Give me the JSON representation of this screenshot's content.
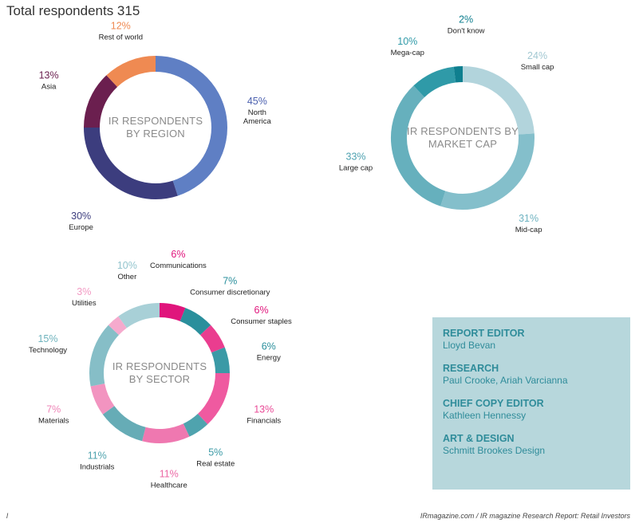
{
  "header": {
    "title": "Total respondents 315"
  },
  "chart_data": [
    {
      "type": "pie",
      "title": "IR RESPONDENTS BY REGION",
      "title_lines": [
        "IR RESPONDENTS",
        "BY REGION"
      ],
      "slices": [
        {
          "label": "North America",
          "label_lines": [
            "North",
            "America"
          ],
          "pct_text": "45%",
          "value": 45,
          "color": "#5f7fc4",
          "pct_color": "#4a5fae"
        },
        {
          "label": "Europe",
          "label_lines": [
            "Europe"
          ],
          "pct_text": "30%",
          "value": 30,
          "color": "#3c3d7e",
          "pct_color": "#3c3d7e"
        },
        {
          "label": "Asia",
          "label_lines": [
            "Asia"
          ],
          "pct_text": "13%",
          "value": 13,
          "color": "#6b1f4f",
          "pct_color": "#6b1f4f"
        },
        {
          "label": "Rest of world",
          "label_lines": [
            "Rest of world"
          ],
          "pct_text": "12%",
          "value": 12,
          "color": "#ef8a52",
          "pct_color": "#ef8a52"
        }
      ]
    },
    {
      "type": "pie",
      "title": "IR RESPONDENTS BY MARKET CAP",
      "title_lines": [
        "IR RESPONDENTS BY",
        "MARKET CAP"
      ],
      "slices": [
        {
          "label": "Small cap",
          "label_lines": [
            "Small cap"
          ],
          "pct_text": "24%",
          "value": 24,
          "color": "#b2d4dc",
          "pct_color": "#a2c8d2"
        },
        {
          "label": "Mid-cap",
          "label_lines": [
            "Mid-cap"
          ],
          "pct_text": "31%",
          "value": 31,
          "color": "#84bfcb",
          "pct_color": "#6fb3c1"
        },
        {
          "label": "Large cap",
          "label_lines": [
            "Large cap"
          ],
          "pct_text": "33%",
          "value": 33,
          "color": "#66b0bd",
          "pct_color": "#4fa2b1"
        },
        {
          "label": "Mega-cap",
          "label_lines": [
            "Mega-cap"
          ],
          "pct_text": "10%",
          "value": 10,
          "color": "#2f9aa8",
          "pct_color": "#2f9aa8"
        },
        {
          "label": "Don't know",
          "label_lines": [
            "Don't know"
          ],
          "pct_text": "2%",
          "value": 2,
          "color": "#0f7f8f",
          "pct_color": "#0f7f8f"
        }
      ]
    },
    {
      "type": "pie",
      "title": "IR RESPONDENTS BY SECTOR",
      "title_lines": [
        "IR RESPONDENTS",
        "BY SECTOR"
      ],
      "slices": [
        {
          "label": "Communications",
          "label_lines": [
            "Communications"
          ],
          "pct_text": "6%",
          "value": 6,
          "color": "#e0157c",
          "pct_color": "#e0157c"
        },
        {
          "label": "Consumer discretionary",
          "label_lines": [
            "Consumer discretionary"
          ],
          "pct_text": "7%",
          "value": 7,
          "color": "#2a8f9c",
          "pct_color": "#2a8f9c"
        },
        {
          "label": "Consumer staples",
          "label_lines": [
            "Consumer staples"
          ],
          "pct_text": "6%",
          "value": 6,
          "color": "#ea3d8f",
          "pct_color": "#e0157c"
        },
        {
          "label": "Energy",
          "label_lines": [
            "Energy"
          ],
          "pct_text": "6%",
          "value": 6,
          "color": "#3b9aa6",
          "pct_color": "#2a8f9c"
        },
        {
          "label": "Financials",
          "label_lines": [
            "Financials"
          ],
          "pct_text": "13%",
          "value": 13,
          "color": "#ef5aa0",
          "pct_color": "#e94b97"
        },
        {
          "label": "Real estate",
          "label_lines": [
            "Real estate"
          ],
          "pct_text": "5%",
          "value": 5,
          "color": "#4fa3ae",
          "pct_color": "#3b9aa6"
        },
        {
          "label": "Healthcare",
          "label_lines": [
            "Healthcare"
          ],
          "pct_text": "11%",
          "value": 11,
          "color": "#ef78b0",
          "pct_color": "#ec6aa6"
        },
        {
          "label": "Industrials",
          "label_lines": [
            "Industrials"
          ],
          "pct_text": "11%",
          "value": 11,
          "color": "#66acb6",
          "pct_color": "#4fa3ae"
        },
        {
          "label": "Materials",
          "label_lines": [
            "Materials"
          ],
          "pct_text": "7%",
          "value": 7,
          "color": "#f294c0",
          "pct_color": "#ee85b7"
        },
        {
          "label": "Technology",
          "label_lines": [
            "Technology"
          ],
          "pct_text": "15%",
          "value": 15,
          "color": "#86bec7",
          "pct_color": "#6fb3bd"
        },
        {
          "label": "Utilities",
          "label_lines": [
            "Utilities"
          ],
          "pct_text": "3%",
          "value": 3,
          "color": "#f5aacd",
          "pct_color": "#f29ac3"
        },
        {
          "label": "Other",
          "label_lines": [
            "Other"
          ],
          "pct_text": "10%",
          "value": 10,
          "color": "#a8d0d7",
          "pct_color": "#92c4cd"
        }
      ]
    }
  ],
  "credits": [
    {
      "role": "REPORT EDITOR",
      "name": "Lloyd Bevan"
    },
    {
      "role": "RESEARCH",
      "name": "Paul Crooke, Ariah Varcianna"
    },
    {
      "role": "CHIEF COPY EDITOR",
      "name": "Kathleen Hennessy"
    },
    {
      "role": "ART & DESIGN",
      "name": "Schmitt Brookes Design"
    }
  ],
  "footer": {
    "page": "l",
    "source": "IRmagazine.com / IR magazine Research Report: Retail Investors"
  }
}
